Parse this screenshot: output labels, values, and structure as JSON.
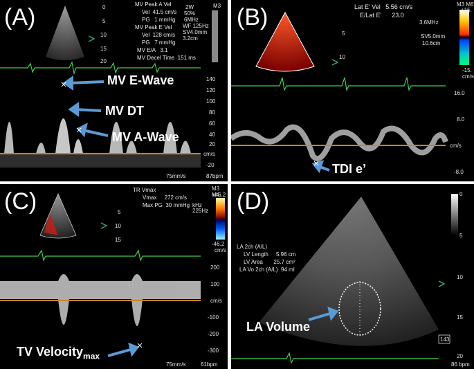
{
  "panels": {
    "a": {
      "label": "(A)",
      "readout": [
        "MV Peak A Vel",
        "Vel  41.5 cm/s",
        "PG   1 mmHg",
        "MV Peak E Vel",
        "Vel  128 cm/s",
        "PG   7 mmHg",
        "MV E/A   3.1",
        "MV Decel Time  151 ms"
      ],
      "settings": [
        "2W",
        "50%",
        "6MHz",
        "WF 125Hz",
        "SV4.0mm",
        "3.2cm"
      ],
      "depth_ticks": [
        "0",
        "5",
        "10",
        "15",
        "20"
      ],
      "scale_ticks": [
        "140",
        "120",
        "100",
        "80",
        "60",
        "40",
        "20",
        "cm/s",
        "-20"
      ],
      "annotations": [
        "MV E-Wave",
        "MV DT",
        "MV A-Wave"
      ],
      "footer": [
        "75mm/s",
        "87bpm"
      ],
      "corner": "M3"
    },
    "b": {
      "label": "(B)",
      "readout": [
        "Lat E' Vel   5.56 cm/s",
        "E/Lat E'      23.0"
      ],
      "settings": [
        "3.6MHz",
        "SV5.0mm",
        "10.6cm"
      ],
      "depth_ticks": [
        "5",
        "10"
      ],
      "color_scale": [
        "M3 M6",
        "+15.",
        "-15.",
        "cm/s"
      ],
      "scale_ticks": [
        "16.0",
        "8.0",
        "cm/s",
        "-8.0"
      ],
      "annotations": [
        "TDI e’"
      ]
    },
    "c": {
      "label": "(C)",
      "readout": [
        "TR Vmax",
        "Vmax     272 cm/s",
        "Max PG  30 mmHg"
      ],
      "settings": [
        "kHz",
        "225Hz"
      ],
      "depth_ticks": [
        "5",
        "10",
        "15"
      ],
      "color_scale": [
        "M3 M4",
        "+46.2",
        "-46.2",
        "cm/s"
      ],
      "scale_ticks": [
        "200",
        "100",
        "cm/s",
        "-100",
        "-200",
        "-300"
      ],
      "annotations": [
        "TV Velocity",
        "max"
      ],
      "footer": [
        "75mm/s",
        "61bpm"
      ]
    },
    "d": {
      "label": "(D)",
      "readout": [
        "LA 2ch (A/L)",
        "LV Length     5.96 cm",
        "LV Area       25.7 cm²",
        "LA Vo 2ch (A/L)  94 ml"
      ],
      "depth_ticks": [
        "0",
        "5",
        "10",
        "15",
        "20"
      ],
      "annotations": [
        "LA Volume"
      ],
      "footer": [
        "86 bpm"
      ],
      "hr_box": "143"
    }
  },
  "colors": {
    "ecg": "#3fd24a",
    "baseline": "#c9822e",
    "arrow": "#5b9bd5",
    "marker": "#2fa873"
  }
}
